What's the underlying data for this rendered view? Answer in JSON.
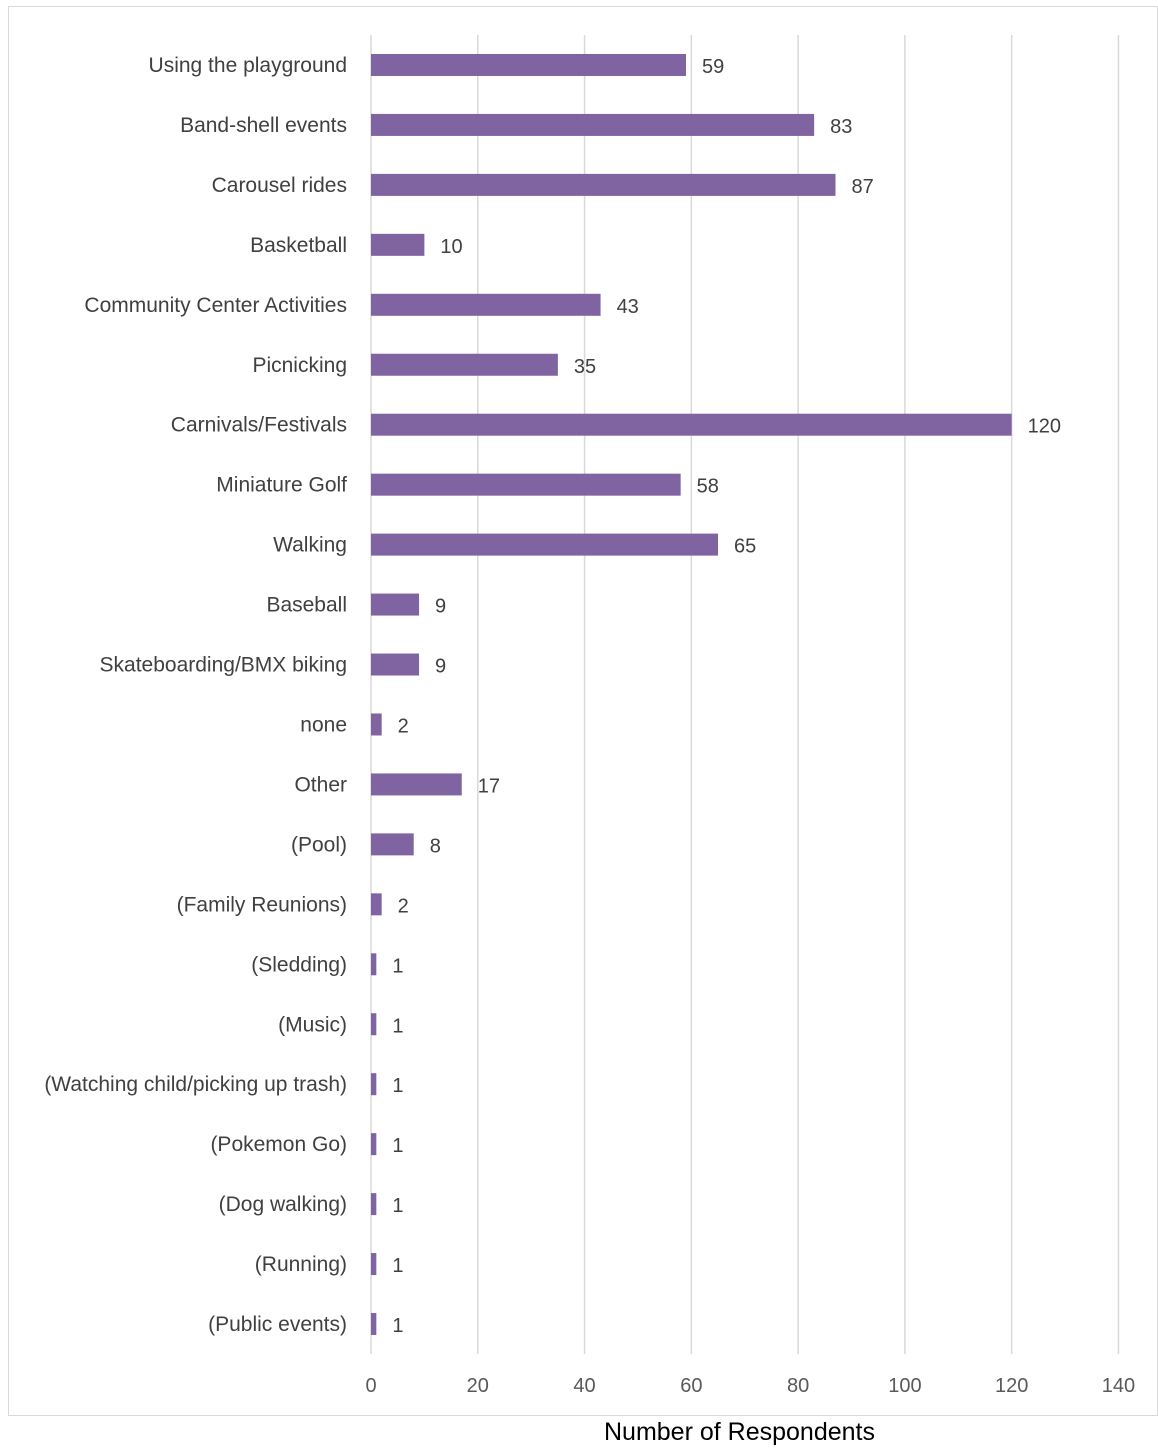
{
  "chart_data": {
    "type": "bar",
    "orientation": "horizontal",
    "categories": [
      "Using the playground",
      "Band-shell events",
      "Carousel rides",
      "Basketball",
      "Community Center Activities",
      "Picnicking",
      "Carnivals/Festivals",
      "Miniature Golf",
      "Walking",
      "Baseball",
      "Skateboarding/BMX biking",
      "none",
      "Other",
      "(Pool)",
      "(Family Reunions)",
      "(Sledding)",
      "(Music)",
      "(Watching child/picking up trash)",
      "(Pokemon Go)",
      "(Dog walking)",
      "(Running)",
      "(Public events)"
    ],
    "values": [
      59,
      83,
      87,
      10,
      43,
      35,
      120,
      58,
      65,
      9,
      9,
      2,
      17,
      8,
      2,
      1,
      1,
      1,
      1,
      1,
      1,
      1
    ],
    "xlim": [
      0,
      140
    ],
    "xticks": [
      "0",
      "20",
      "40",
      "60",
      "80",
      "100",
      "120",
      "140"
    ],
    "xlabel": "Number of Respondents",
    "grid": "vertical",
    "data_labels": true,
    "bar_color": "#8064a2",
    "grid_color": "#d9d9d9"
  }
}
